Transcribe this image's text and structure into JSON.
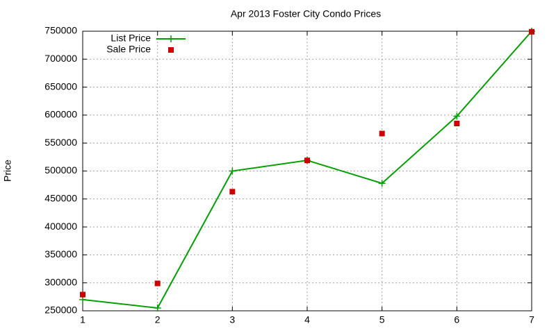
{
  "chart_data": {
    "type": "line",
    "title": "Apr 2013 Foster City Condo Prices",
    "y_label": "Price",
    "x": [
      1,
      2,
      3,
      4,
      5,
      6,
      7
    ],
    "series": [
      {
        "name": "List Price",
        "color": "#00a000",
        "line": true,
        "marker": "plus",
        "values": [
          270000,
          255000,
          500000,
          519000,
          478000,
          598000,
          750000
        ]
      },
      {
        "name": "Sale Price",
        "color": "#cc0000",
        "line": false,
        "marker": "square",
        "values": [
          279000,
          299000,
          463000,
          519000,
          567000,
          585000,
          749000
        ]
      }
    ],
    "xlim": [
      1,
      7
    ],
    "xticks": [
      1,
      2,
      3,
      4,
      5,
      6,
      7
    ],
    "ylim": [
      250000,
      750000
    ],
    "yticks": [
      250000,
      300000,
      350000,
      400000,
      450000,
      500000,
      550000,
      600000,
      650000,
      700000,
      750000
    ],
    "grid": true,
    "legend": "top-left"
  }
}
